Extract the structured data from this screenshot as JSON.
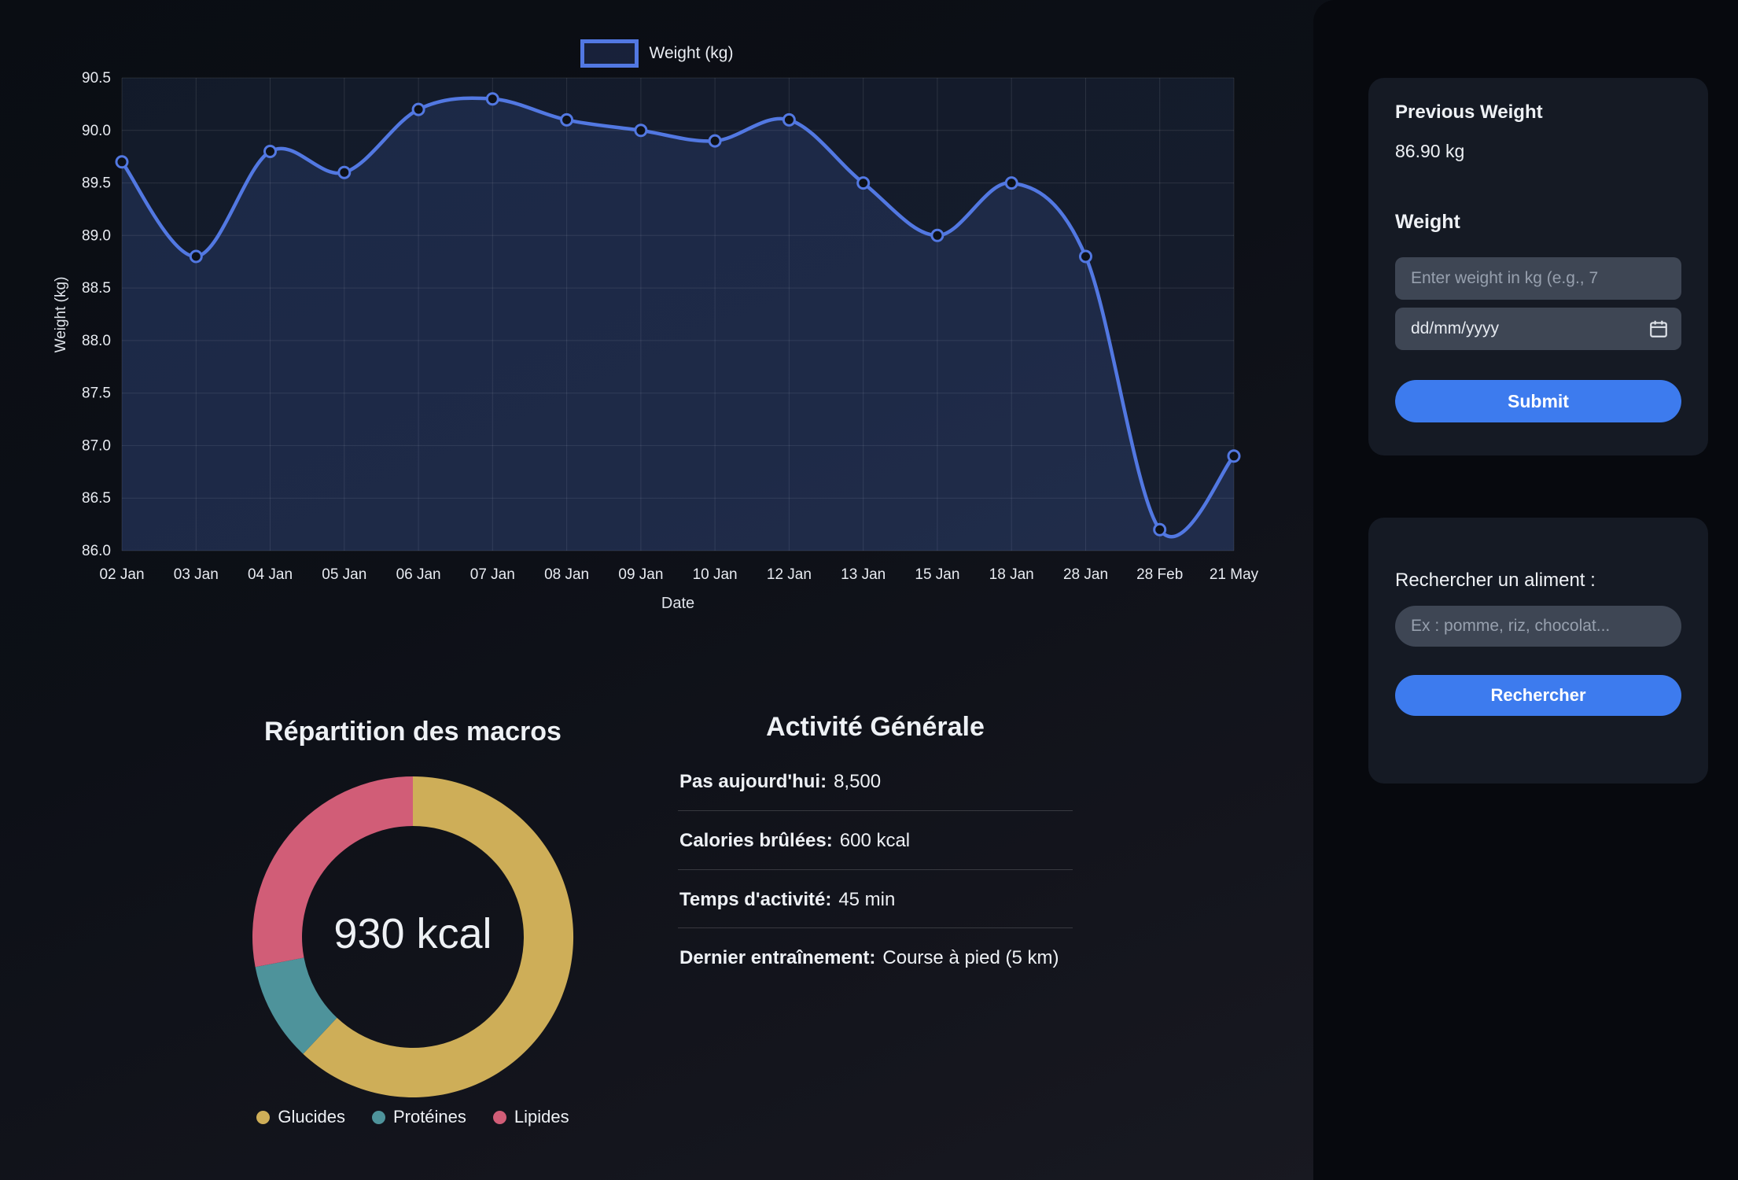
{
  "colors": {
    "accent_blue": "#5278e2",
    "button_blue": "#3d7bee",
    "gold": "#ceae58",
    "teal": "#4e939b",
    "pink": "#d15d77"
  },
  "chart_data": [
    {
      "id": "weight_line",
      "type": "line",
      "legend": "Weight (kg)",
      "xlabel": "Date",
      "ylabel": "Weight (kg)",
      "categories": [
        "02 Jan",
        "03 Jan",
        "04 Jan",
        "05 Jan",
        "06 Jan",
        "07 Jan",
        "08 Jan",
        "09 Jan",
        "10 Jan",
        "12 Jan",
        "13 Jan",
        "15 Jan",
        "18 Jan",
        "28 Jan",
        "28 Feb",
        "21 May"
      ],
      "values": [
        89.7,
        88.8,
        89.8,
        89.6,
        90.2,
        90.3,
        90.1,
        90.0,
        89.9,
        90.1,
        89.5,
        89.0,
        89.5,
        88.8,
        86.2,
        86.9
      ],
      "ylim": [
        86.0,
        90.5
      ],
      "ytick_step": 0.5,
      "grid": true,
      "legend_position": "top"
    },
    {
      "id": "macros_donut",
      "type": "pie",
      "title": "Répartition des macros",
      "center_label": "930 kcal",
      "labels": [
        "Glucides",
        "Protéines",
        "Lipides"
      ],
      "values_percent": [
        62,
        10,
        28
      ],
      "colors": [
        "#ceae58",
        "#4e939b",
        "#d15d77"
      ]
    }
  ],
  "activity": {
    "title": "Activité Générale",
    "rows": [
      {
        "label": "Pas aujourd'hui:",
        "value": "8,500"
      },
      {
        "label": "Calories brûlées:",
        "value": "600 kcal"
      },
      {
        "label": "Temps d'activité:",
        "value": "45 min"
      },
      {
        "label": "Dernier entraînement:",
        "value": "Course à pied (5 km)"
      }
    ]
  },
  "sidebar": {
    "weight_card": {
      "previous_weight_label": "Previous Weight",
      "previous_weight_value": "86.90 kg",
      "weight_label": "Weight",
      "weight_input_placeholder": "Enter weight in kg (e.g., 7",
      "date_input_value": "dd/mm/yyyy",
      "submit_label": "Submit"
    },
    "food_card": {
      "search_label": "Rechercher un aliment :",
      "search_placeholder": "Ex : pomme, riz, chocolat...",
      "search_button_label": "Rechercher"
    }
  }
}
